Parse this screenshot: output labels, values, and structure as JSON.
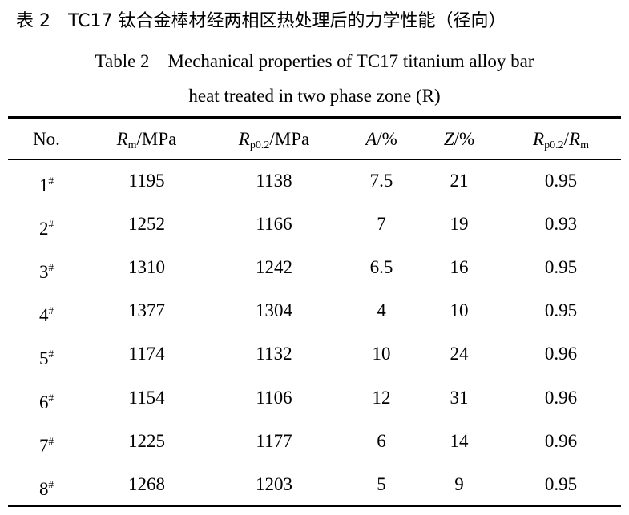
{
  "caption": {
    "chinese": "表 2　TC17 钛合金棒材经两相区热处理后的力学性能（径向）",
    "english": [
      "Table 2　Mechanical properties of TC17 titanium alloy bar",
      "heat treated in two phase zone (R)"
    ]
  },
  "table": {
    "header": [
      [
        "No."
      ],
      [
        "R",
        "m",
        "/MPa"
      ],
      [
        "R",
        "p0.2",
        "/MPa"
      ],
      [
        "A",
        "/%"
      ],
      [
        "Z",
        "/%"
      ],
      [
        "R",
        "p0.2",
        "/",
        "R",
        "m"
      ]
    ],
    "rows": [
      [
        [
          "1",
          "#"
        ],
        1195,
        1138,
        7.5,
        21,
        0.95
      ],
      [
        [
          "2",
          "#"
        ],
        1252,
        1166,
        7,
        19,
        0.93
      ],
      [
        [
          "3",
          "#"
        ],
        1310,
        1242,
        6.5,
        16,
        0.95
      ],
      [
        [
          "4",
          "#"
        ],
        1377,
        1304,
        4,
        10,
        0.95
      ],
      [
        [
          "5",
          "#"
        ],
        1174,
        1132,
        10,
        24,
        0.96
      ],
      [
        [
          "6",
          "#"
        ],
        1154,
        1106,
        12,
        31,
        0.96
      ],
      [
        [
          "7",
          "#"
        ],
        1225,
        1177,
        6,
        14,
        0.96
      ],
      [
        [
          "8",
          "#"
        ],
        1268,
        1203,
        5,
        9,
        0.95
      ]
    ]
  }
}
